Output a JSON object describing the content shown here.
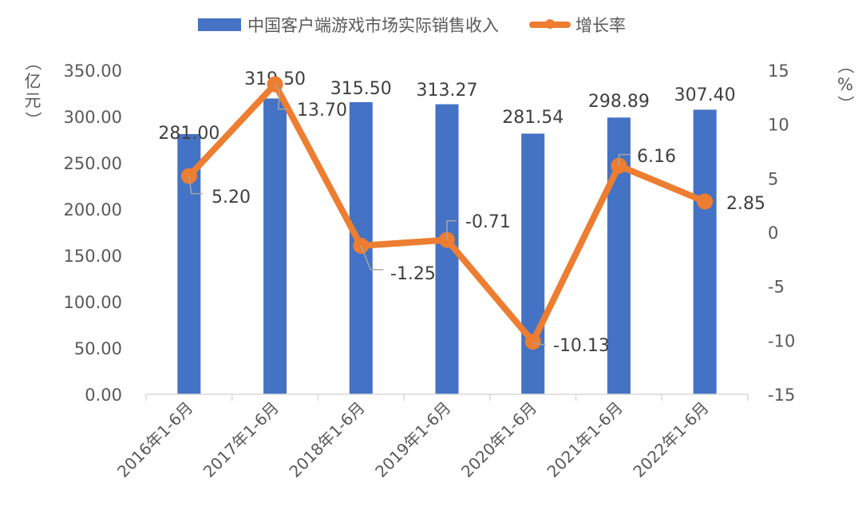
{
  "chart_data": {
    "type": "bar+line",
    "title": "",
    "categories": [
      "2016年1-6月",
      "2017年1-6月",
      "2018年1-6月",
      "2019年1-6月",
      "2020年1-6月",
      "2021年1-6月",
      "2022年1-6月"
    ],
    "series": [
      {
        "name": "中国客户端游戏市场实际销售收入",
        "type": "bar",
        "axis": "left",
        "color": "#4472C4",
        "values": [
          281.0,
          319.5,
          315.5,
          313.27,
          281.54,
          298.89,
          307.4
        ],
        "labels": [
          "281.00",
          "319.50",
          "315.50",
          "313.27",
          "281.54",
          "298.89",
          "307.40"
        ]
      },
      {
        "name": "增长率",
        "type": "line",
        "axis": "right",
        "color": "#ED7D31",
        "values": [
          5.2,
          13.7,
          -1.25,
          -0.71,
          -10.13,
          6.16,
          2.85
        ],
        "labels": [
          "5.20",
          "13.70",
          "-1.25",
          "-0.71",
          "-10.13",
          "6.16",
          "2.85"
        ]
      }
    ],
    "ylabel": "亿元",
    "ylabel_right": "%",
    "ylim": [
      0,
      350
    ],
    "ylim_right": [
      -15,
      15
    ],
    "yticks": [
      "0.00",
      "50.00",
      "100.00",
      "150.00",
      "200.00",
      "250.00",
      "300.00",
      "350.00"
    ],
    "yticks_right": [
      "-15",
      "-10",
      "-5",
      "0",
      "5",
      "10",
      "15"
    ],
    "grid": false,
    "legend_position": "top"
  },
  "legend": {
    "bar_label": "中国客户端游戏市场实际销售收入",
    "line_label": "增长率"
  },
  "axis": {
    "left_unit_open": "（",
    "left_unit": "亿元",
    "left_unit_close": "）",
    "right_unit_open": "（",
    "right_unit": "%",
    "right_unit_close": "）"
  },
  "colors": {
    "bar": "#4472C4",
    "line": "#ED7D31",
    "axis": "#D9D9D9",
    "text": "#404040",
    "leader": "#A6A6A6"
  }
}
